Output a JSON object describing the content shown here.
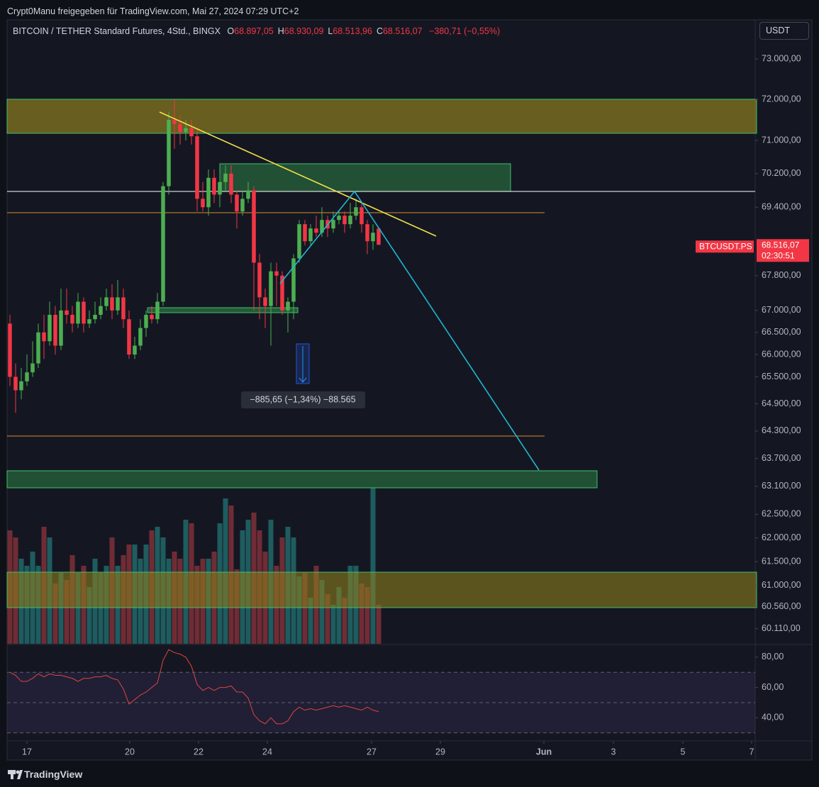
{
  "header": {
    "shared_by": "Crypt0Manu freigegeben für TradingView.com, Mai 27, 2024 07:29 UTC+2"
  },
  "legend": {
    "symbol": "BITCOIN / TETHER Standard Futures, 4Std., BINGX",
    "ohlc": [
      {
        "key": "O",
        "value": "68.897,05"
      },
      {
        "key": "H",
        "value": "68.930,09"
      },
      {
        "key": "L",
        "value": "68.513,96"
      },
      {
        "key": "C",
        "value": "68.516,07"
      }
    ],
    "change": "−380,71 (−0,55%)"
  },
  "currency": "USDT",
  "badge": {
    "symbol": "BTCUSDT.PS",
    "price": "68.516,07",
    "countdown": "02:30:51"
  },
  "measure": {
    "label": "−885,65 (−1,34%) −88.565"
  },
  "time_labels": [
    "17",
    "20",
    "22",
    "24",
    "27",
    "29",
    "Jun",
    "3",
    "5",
    "7"
  ],
  "watermark": "TradingView",
  "chart_data": [
    {
      "type": "candlestick",
      "log_scale": true,
      "grid": false,
      "up_color": "#4caf50",
      "down_color": "#f23645",
      "volume_colors": {
        "up": "#1f6466",
        "down": "#7a2f37"
      },
      "ylim": [
        59800,
        73980
      ],
      "yticks": [
        {
          "value": 73000,
          "label": "73.000,00"
        },
        {
          "value": 72000,
          "label": "72.000,00"
        },
        {
          "value": 71000,
          "label": "71.000,00"
        },
        {
          "value": 70200,
          "label": "70.200,00"
        },
        {
          "value": 69400,
          "label": "69.400,00"
        },
        {
          "value": 67800,
          "label": "67.800,00"
        },
        {
          "value": 67000,
          "label": "67.000,00"
        },
        {
          "value": 66500,
          "label": "66.500,00"
        },
        {
          "value": 66000,
          "label": "66.000,00"
        },
        {
          "value": 65500,
          "label": "65.500,00"
        },
        {
          "value": 64900,
          "label": "64.900,00"
        },
        {
          "value": 64300,
          "label": "64.300,00"
        },
        {
          "value": 63700,
          "label": "63.700,00"
        },
        {
          "value": 63100,
          "label": "63.100,00"
        },
        {
          "value": 62500,
          "label": "62.500,00"
        },
        {
          "value": 62000,
          "label": "62.000,00"
        },
        {
          "value": 61500,
          "label": "61.500,00"
        },
        {
          "value": 61000,
          "label": "61.000,00"
        },
        {
          "value": 60560,
          "label": "60.560,00"
        },
        {
          "value": 60110,
          "label": "60.110,00"
        }
      ],
      "open": [
        66700,
        65500,
        65200,
        65400,
        65600,
        65800,
        66500,
        66300,
        66900,
        66200,
        67000,
        66900,
        66700,
        67200,
        66700,
        66800,
        66900,
        67100,
        67300,
        67000,
        67300,
        66800,
        66000,
        66200,
        66600,
        66900,
        66800,
        67200,
        69900,
        71500,
        71400,
        71200,
        71300,
        71100,
        69600,
        69400,
        70100,
        69700,
        70000,
        70200,
        69700,
        69300,
        69600,
        69800,
        68100,
        67300,
        67100,
        67900,
        67800,
        67000,
        67200,
        68200,
        69000,
        68600,
        68900,
        68800,
        69100,
        68900,
        69100,
        69200,
        69000,
        69200,
        69400,
        69000,
        68600,
        68897.05
      ],
      "high": [
        66900,
        65800,
        65700,
        66000,
        66300,
        66700,
        66900,
        67200,
        67100,
        67500,
        67500,
        67100,
        67400,
        67300,
        67000,
        67200,
        67300,
        67500,
        67600,
        67700,
        67500,
        67000,
        66400,
        66800,
        67000,
        67100,
        67400,
        70000,
        71700,
        72000,
        71600,
        71500,
        71500,
        71300,
        70000,
        70300,
        70300,
        70200,
        70400,
        70400,
        69800,
        69800,
        70000,
        69900,
        68300,
        67500,
        68100,
        68100,
        67900,
        67300,
        68300,
        69100,
        69100,
        69000,
        69200,
        69400,
        69200,
        69300,
        69300,
        69300,
        69500,
        69600,
        69500,
        69100,
        69000,
        68930.09
      ],
      "low": [
        65300,
        64700,
        65000,
        65300,
        65500,
        65700,
        65900,
        66200,
        66000,
        66100,
        66700,
        66500,
        66600,
        66500,
        66600,
        66700,
        66800,
        67000,
        66800,
        66900,
        66600,
        65900,
        65900,
        66100,
        66400,
        66700,
        66700,
        67100,
        69700,
        70800,
        70900,
        71000,
        70900,
        69300,
        69300,
        69200,
        69500,
        69400,
        69800,
        69500,
        68900,
        69200,
        69500,
        67000,
        66800,
        66600,
        66200,
        67100,
        66900,
        66500,
        66800,
        68100,
        68500,
        68500,
        68700,
        68700,
        68700,
        68800,
        69000,
        68800,
        68900,
        69100,
        68800,
        68300,
        68400,
        68513.96
      ],
      "close": [
        65500,
        65200,
        65400,
        65600,
        65800,
        66500,
        66300,
        66900,
        66200,
        67000,
        66900,
        66700,
        67200,
        66700,
        66800,
        66900,
        67100,
        67300,
        67000,
        67300,
        66800,
        66000,
        66200,
        66600,
        66900,
        66800,
        67200,
        69900,
        71500,
        71400,
        71200,
        71300,
        71100,
        69600,
        69400,
        70100,
        69700,
        70000,
        70200,
        69700,
        69300,
        69600,
        69800,
        68100,
        67300,
        67100,
        67900,
        67800,
        67000,
        67200,
        68200,
        69000,
        68600,
        68900,
        68800,
        69100,
        68900,
        69100,
        69200,
        69000,
        69200,
        69400,
        69000,
        68600,
        68800,
        68516.07
      ],
      "volume": [
        160,
        150,
        120,
        110,
        130,
        110,
        165,
        150,
        85,
        100,
        90,
        125,
        100,
        110,
        80,
        120,
        100,
        110,
        150,
        110,
        125,
        140,
        140,
        120,
        140,
        160,
        165,
        150,
        120,
        130,
        120,
        175,
        170,
        110,
        120,
        120,
        130,
        170,
        205,
        195,
        105,
        160,
        175,
        185,
        160,
        130,
        175,
        110,
        150,
        165,
        150,
        95,
        100,
        65,
        110,
        90,
        70,
        55,
        80,
        65,
        110,
        110,
        85,
        80,
        220,
        55
      ]
    },
    {
      "type": "line",
      "color": "#e0453f",
      "band_color": "#7e57c2",
      "ylim": [
        24.7,
        87.9
      ],
      "yticks": [
        {
          "value": 80,
          "label": "80,00"
        },
        {
          "value": 60,
          "label": "60,00"
        },
        {
          "value": 40,
          "label": "40,00"
        }
      ],
      "levels": [
        70,
        50,
        30
      ],
      "values": [
        70,
        68,
        64,
        64,
        66,
        69,
        67,
        69,
        68,
        68,
        67,
        66,
        64,
        66,
        66,
        67,
        67,
        68,
        66,
        65,
        59,
        49,
        52,
        55,
        57,
        60,
        63,
        78,
        85,
        83,
        82,
        80,
        74,
        62,
        58,
        60,
        58,
        60,
        60,
        61,
        57,
        57,
        53,
        42,
        38,
        36,
        40,
        36,
        36,
        38,
        44,
        47,
        45,
        46,
        45,
        46,
        47,
        48,
        47,
        48,
        47,
        46,
        45,
        47,
        45,
        44
      ]
    }
  ]
}
